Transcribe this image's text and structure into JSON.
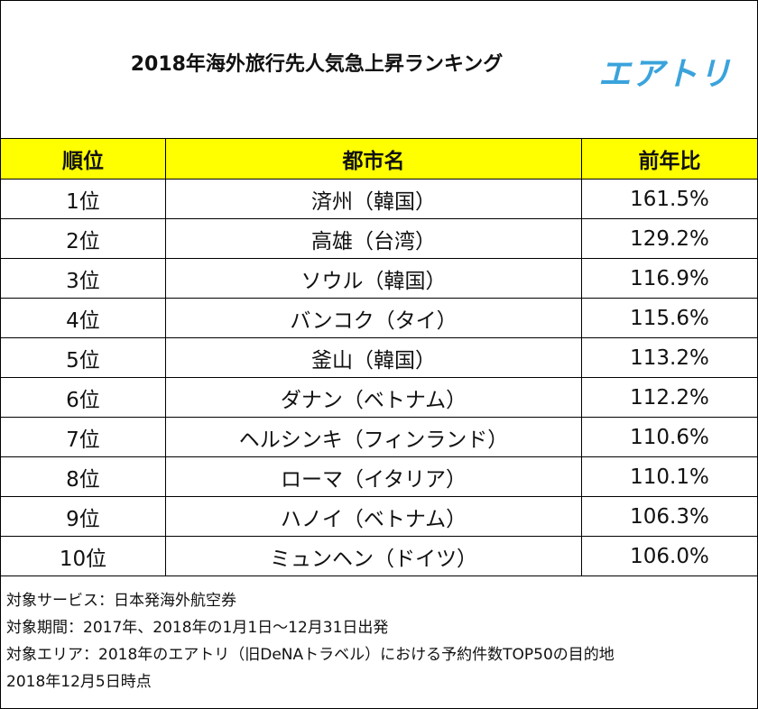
{
  "header": {
    "title": "2018年海外旅行先人気急上昇ランキング",
    "logo": "エアトリ"
  },
  "table": {
    "columns": [
      "順位",
      "都市名",
      "前年比"
    ],
    "rows": [
      [
        "1位",
        "済州（韓国）",
        "161.5%"
      ],
      [
        "2位",
        "高雄（台湾）",
        "129.2%"
      ],
      [
        "3位",
        "ソウル（韓国）",
        "116.9%"
      ],
      [
        "4位",
        "バンコク（タイ）",
        "115.6%"
      ],
      [
        "5位",
        "釜山（韓国）",
        "113.2%"
      ],
      [
        "6位",
        "ダナン（ベトナム）",
        "112.2%"
      ],
      [
        "7位",
        "ヘルシンキ（フィンランド）",
        "110.6%"
      ],
      [
        "8位",
        "ローマ（イタリア）",
        "110.1%"
      ],
      [
        "9位",
        "ハノイ（ベトナム）",
        "106.3%"
      ],
      [
        "10位",
        "ミュンヘン（ドイツ）",
        "106.0%"
      ]
    ]
  },
  "notes": [
    "対象サービス：日本発海外航空券",
    "対象期間：2017年、2018年の1月1日～12月31日出発",
    "対象エリア：2018年のエアトリ（旧DeNAトラベル）における予約件数TOP50の目的地",
    "2018年12月5日時点"
  ]
}
